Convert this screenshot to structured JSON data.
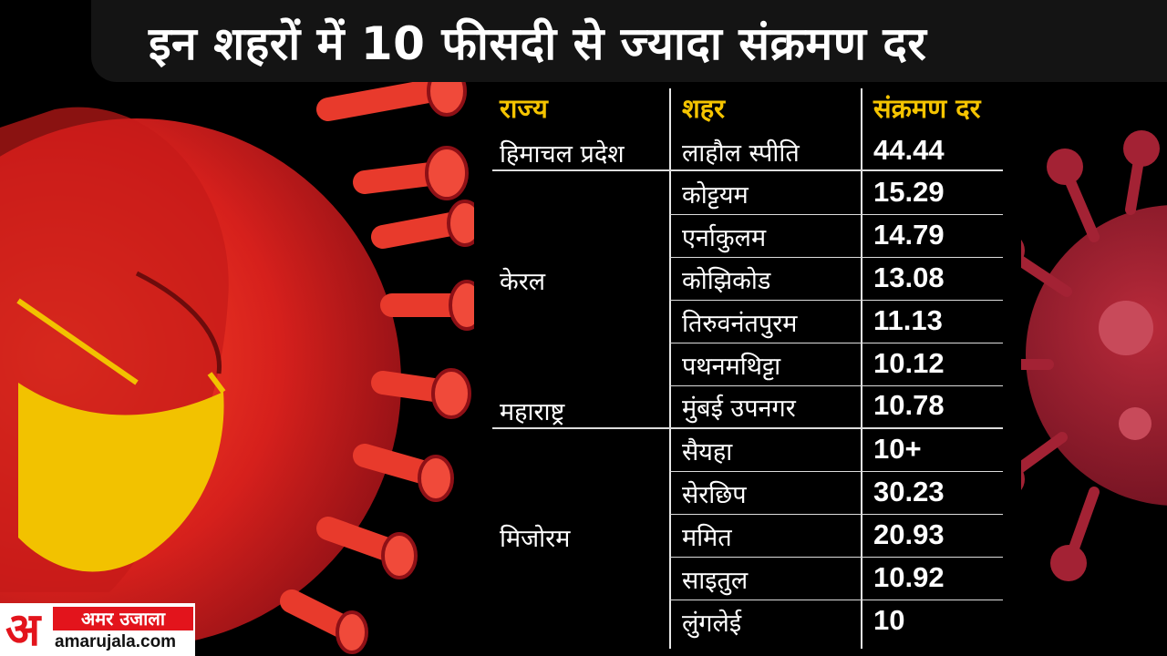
{
  "title": "इन शहरों में 10 फीसदी से ज्यादा संक्रमण दर",
  "headers": {
    "state": "राज्य",
    "city": "शहर",
    "rate": "संक्रमण दर"
  },
  "states": [
    "हिमाचल प्रदेश",
    "केरल",
    "महाराष्ट्र",
    "मिजोरम"
  ],
  "rows": [
    {
      "city": "लाहौल स्पीति",
      "rate": "44.44"
    },
    {
      "city": "कोट्टयम",
      "rate": "15.29"
    },
    {
      "city": "एर्नाकुलम",
      "rate": "14.79"
    },
    {
      "city": "कोझिकोड",
      "rate": "13.08"
    },
    {
      "city": "तिरुवनंतपुरम",
      "rate": "11.13"
    },
    {
      "city": "पथनमथिट्टा",
      "rate": "10.12"
    },
    {
      "city": "मुंबई उपनगर",
      "rate": "10.78"
    },
    {
      "city": "सैयहा",
      "rate": "10+"
    },
    {
      "city": "सेरछिप",
      "rate": "30.23"
    },
    {
      "city": "ममित",
      "rate": "20.93"
    },
    {
      "city": "साइतुल",
      "rate": "10.92"
    },
    {
      "city": "लुंगलेई",
      "rate": "10"
    }
  ],
  "logo": {
    "mark": "अ",
    "name": "अमर उजाला",
    "url": "amarujala.com"
  },
  "colors": {
    "accent": "#f5c400",
    "virus": "#d21f1f",
    "virus_dark": "#8e1420",
    "mask": "#f2c200",
    "brand": "#e3141c"
  }
}
